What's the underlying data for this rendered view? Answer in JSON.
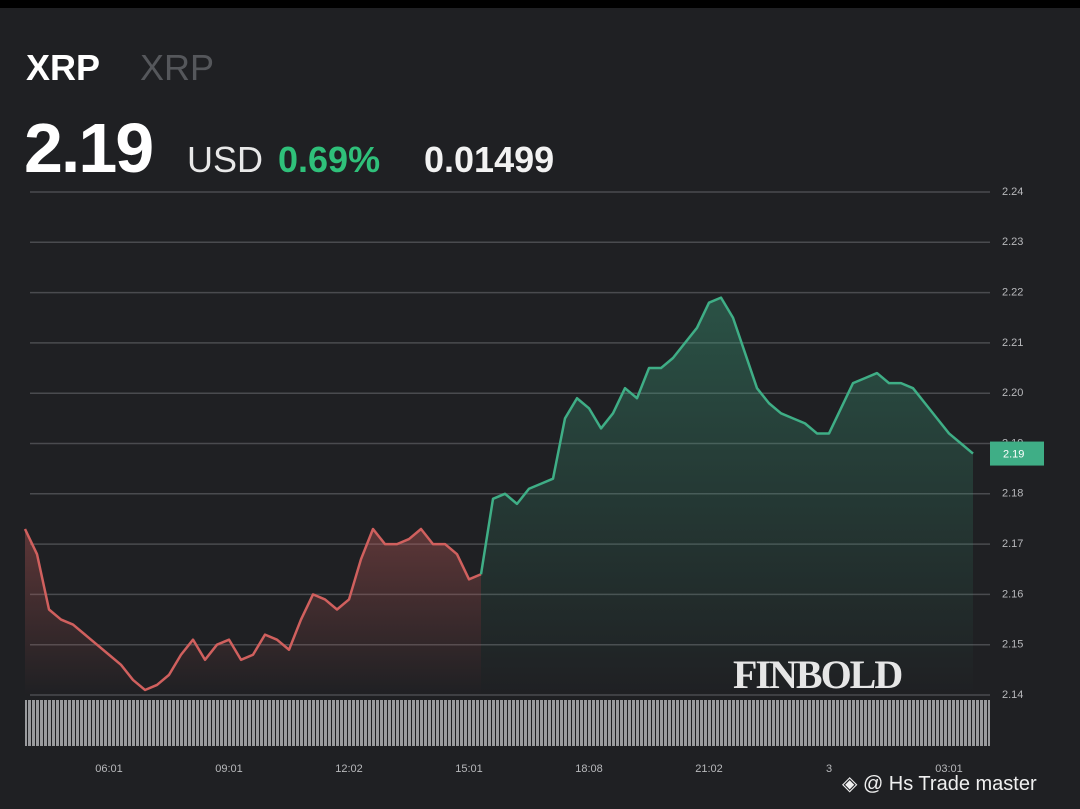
{
  "header": {
    "symbol": "XRP",
    "name": "XRP",
    "price": "2.19",
    "currency": "USD",
    "change_percent": "0.69%",
    "change": "0.01499"
  },
  "chart_data": {
    "type": "line",
    "categories": [
      null,
      null,
      null,
      null,
      null,
      null,
      null,
      "06:01",
      null,
      null,
      null,
      null,
      null,
      null,
      null,
      null,
      null,
      "09:01",
      null,
      null,
      null,
      null,
      null,
      null,
      null,
      null,
      null,
      "12:02",
      null,
      null,
      null,
      null,
      null,
      null,
      null,
      null,
      null,
      "15:01",
      null,
      null,
      null,
      null,
      null,
      null,
      null,
      null,
      null,
      "18:08",
      null,
      null,
      null,
      null,
      null,
      null,
      null,
      null,
      null,
      "21:02",
      null,
      null,
      null,
      null,
      null,
      null,
      null,
      null,
      null,
      "3",
      null,
      null,
      null,
      null,
      null,
      null,
      null,
      null,
      null,
      "03:01",
      null,
      null
    ],
    "series": [
      {
        "color": "#d0605e",
        "values": [
          2.173,
          2.168,
          2.157,
          2.155,
          2.154,
          2.152,
          2.15,
          2.148,
          2.146,
          2.143,
          2.141,
          2.142,
          2.144,
          2.148,
          2.151,
          2.147,
          2.15,
          2.151,
          2.147,
          2.148,
          2.152,
          2.151,
          2.149,
          2.155,
          2.16,
          2.159,
          2.157,
          2.159,
          2.167,
          2.173,
          2.17,
          2.17,
          2.171,
          2.173,
          2.17,
          2.17,
          2.168,
          2.163,
          2.164,
          null,
          null,
          null,
          null,
          null,
          null,
          null,
          null,
          null,
          null,
          null,
          null,
          null,
          null,
          null,
          null,
          null,
          null,
          null,
          null,
          null,
          null,
          null,
          null,
          null,
          null,
          null,
          null,
          null,
          null,
          null,
          null,
          null,
          null,
          null,
          null,
          null,
          null,
          null,
          null,
          null
        ]
      },
      {
        "color": "#3fae86",
        "values": [
          null,
          null,
          null,
          null,
          null,
          null,
          null,
          null,
          null,
          null,
          null,
          null,
          null,
          null,
          null,
          null,
          null,
          null,
          null,
          null,
          null,
          null,
          null,
          null,
          null,
          null,
          null,
          null,
          null,
          null,
          null,
          null,
          null,
          null,
          null,
          null,
          null,
          null,
          2.164,
          2.179,
          2.18,
          2.178,
          2.181,
          2.182,
          2.183,
          2.195,
          2.199,
          2.197,
          2.193,
          2.196,
          2.201,
          2.199,
          2.205,
          2.205,
          2.207,
          2.21,
          2.213,
          2.218,
          2.219,
          2.215,
          2.208,
          2.201,
          2.198,
          2.196,
          2.195,
          2.194,
          2.192,
          2.192,
          2.197,
          2.202,
          2.203,
          2.204,
          2.202,
          2.202,
          2.201,
          2.198,
          2.195,
          2.192,
          2.19,
          2.188
        ]
      }
    ],
    "ylim": [
      2.14,
      2.24
    ],
    "yticks": [
      2.14,
      2.15,
      2.16,
      2.17,
      2.18,
      2.19,
      {
        "value": 2.2,
        "label": "2.20"
      },
      2.21,
      2.22,
      2.23,
      2.24
    ],
    "grid": true,
    "price_tag": "2.19"
  },
  "watermark": {
    "brand": "FINBOLD",
    "credit": "@ Hs Trade master"
  }
}
